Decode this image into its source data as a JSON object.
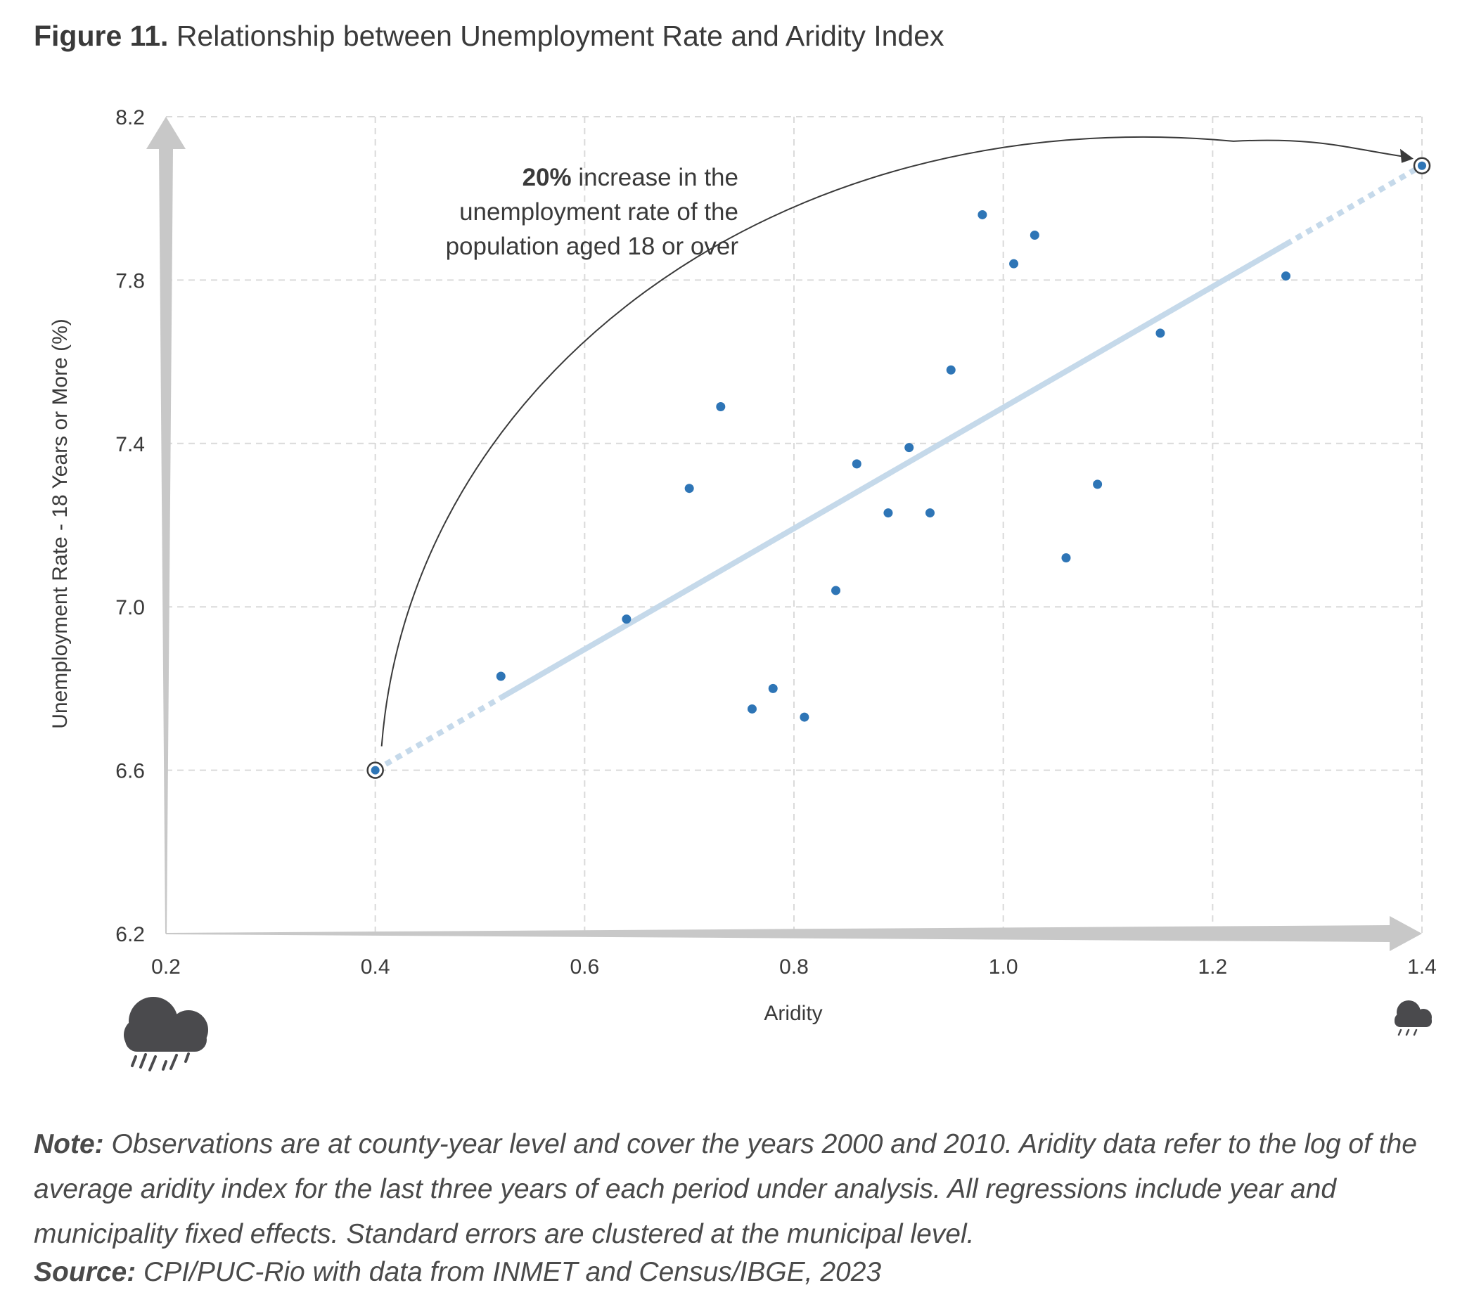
{
  "figure": {
    "label": "Figure 11.",
    "title": "Relationship between Unemployment Rate and Aridity Index"
  },
  "chart_data": {
    "type": "scatter",
    "xlabel": "Aridity",
    "ylabel": "Unemployment Rate - 18 Years or More (%)",
    "xlim": [
      0.2,
      1.4
    ],
    "ylim": [
      6.2,
      8.2
    ],
    "x_ticks": [
      "0.2",
      "0.4",
      "0.6",
      "0.8",
      "1.0",
      "1.2",
      "1.4"
    ],
    "y_ticks": [
      "6.2",
      "6.6",
      "7.0",
      "7.4",
      "7.8",
      "8.2"
    ],
    "grid": true,
    "points": [
      {
        "x": 0.52,
        "y": 6.83
      },
      {
        "x": 0.64,
        "y": 6.97
      },
      {
        "x": 0.7,
        "y": 7.29
      },
      {
        "x": 0.73,
        "y": 7.49
      },
      {
        "x": 0.76,
        "y": 6.75
      },
      {
        "x": 0.78,
        "y": 6.8
      },
      {
        "x": 0.81,
        "y": 6.73
      },
      {
        "x": 0.84,
        "y": 7.04
      },
      {
        "x": 0.86,
        "y": 7.35
      },
      {
        "x": 0.89,
        "y": 7.23
      },
      {
        "x": 0.91,
        "y": 7.39
      },
      {
        "x": 0.93,
        "y": 7.23
      },
      {
        "x": 0.95,
        "y": 7.58
      },
      {
        "x": 0.98,
        "y": 7.96
      },
      {
        "x": 1.01,
        "y": 7.84
      },
      {
        "x": 1.03,
        "y": 7.91
      },
      {
        "x": 1.06,
        "y": 7.12
      },
      {
        "x": 1.09,
        "y": 7.3
      },
      {
        "x": 1.15,
        "y": 7.67
      },
      {
        "x": 1.27,
        "y": 7.81
      }
    ],
    "fit_line": {
      "start": {
        "x": 0.4,
        "y": 6.6
      },
      "end": {
        "x": 1.4,
        "y": 8.08
      },
      "solid_from_x": 0.52,
      "solid_to_x": 1.27
    },
    "highlight_points": [
      {
        "x": 0.4,
        "y": 6.6
      },
      {
        "x": 1.4,
        "y": 8.08
      }
    ],
    "annotation": {
      "bold": "20%",
      "line1_rest": " increase in the",
      "line2": "unemployment rate of the",
      "line3": "population aged 18 or over"
    },
    "colors": {
      "point": "#2e75b6",
      "fit_line": "#c5d9ea",
      "axis_arrow": "#c8c8c8",
      "grid": "#dadada",
      "text": "#3a3a3a",
      "icon": "#4a4a4d"
    },
    "icons": [
      "heavy-rain-cloud-icon",
      "light-rain-cloud-icon"
    ]
  },
  "note": {
    "label": "Note:",
    "text": " Observations are at county-year level and cover the years 2000 and 2010. Aridity data refer to the log of the average aridity index for the last three years of each period under analysis. All regressions include year and municipality fixed effects. Standard errors are clustered at the municipal level."
  },
  "source": {
    "label": "Source:",
    "text": " CPI/PUC-Rio with data from INMET and Census/IBGE, 2023"
  }
}
